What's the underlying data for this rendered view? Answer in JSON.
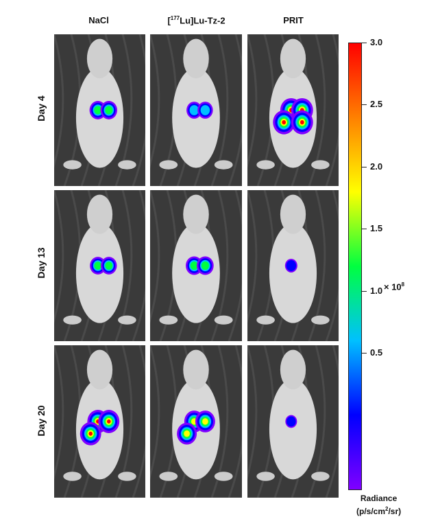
{
  "columns": [
    "NaCl",
    "[177Lu]Lu-Tz-2",
    "PRIT"
  ],
  "rows": [
    "Day  4",
    "Day  13",
    "Day  20"
  ],
  "colorbar": {
    "ticks": [
      "3.0",
      "2.5",
      "2.0",
      "1.5",
      "1.0",
      "0.5"
    ],
    "multiplier": "× 10^8",
    "label": "Radiance",
    "label_units": "(p/s/cm²/sr)",
    "min": 0,
    "max": 3.0,
    "colors": [
      "#8000ff",
      "#0000ff",
      "#00c0ff",
      "#00ff40",
      "#ffff00",
      "#ff8000",
      "#ff0000"
    ]
  },
  "signal_levels": [
    [
      0.55,
      0.45,
      0.9
    ],
    [
      0.5,
      0.55,
      0.25
    ],
    [
      0.85,
      0.75,
      0.2
    ]
  ]
}
